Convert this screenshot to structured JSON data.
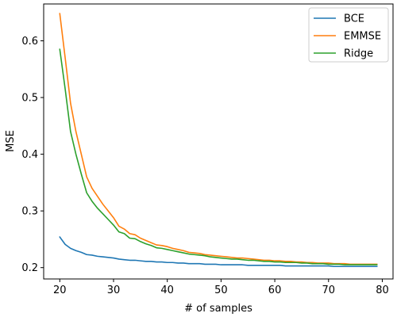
{
  "chart_data": {
    "type": "line",
    "title": "",
    "xlabel": "# of samples",
    "ylabel": "MSE",
    "xlim": [
      17,
      82
    ],
    "ylim": [
      0.18,
      0.665
    ],
    "xticks": [
      20,
      30,
      40,
      50,
      60,
      70,
      80
    ],
    "yticks": [
      0.2,
      0.3,
      0.4,
      0.5,
      0.6
    ],
    "grid": false,
    "legend_position": "top-right",
    "x": [
      20,
      21,
      22,
      23,
      24,
      25,
      26,
      27,
      28,
      29,
      30,
      31,
      32,
      33,
      34,
      35,
      36,
      37,
      38,
      39,
      40,
      41,
      42,
      43,
      44,
      45,
      46,
      47,
      48,
      49,
      50,
      51,
      52,
      53,
      54,
      55,
      56,
      57,
      58,
      59,
      60,
      61,
      62,
      63,
      64,
      65,
      66,
      67,
      68,
      69,
      70,
      71,
      72,
      73,
      74,
      75,
      76,
      77,
      78,
      79
    ],
    "series": [
      {
        "name": "BCE",
        "color": "#1f77b4",
        "values": [
          0.254,
          0.241,
          0.234,
          0.23,
          0.227,
          0.223,
          0.222,
          0.22,
          0.219,
          0.218,
          0.217,
          0.215,
          0.214,
          0.213,
          0.213,
          0.212,
          0.211,
          0.211,
          0.21,
          0.21,
          0.209,
          0.209,
          0.208,
          0.208,
          0.207,
          0.207,
          0.207,
          0.206,
          0.206,
          0.206,
          0.205,
          0.205,
          0.205,
          0.205,
          0.205,
          0.204,
          0.204,
          0.204,
          0.204,
          0.204,
          0.204,
          0.204,
          0.203,
          0.203,
          0.203,
          0.203,
          0.203,
          0.203,
          0.203,
          0.203,
          0.203,
          0.202,
          0.202,
          0.202,
          0.202,
          0.202,
          0.202,
          0.202,
          0.202,
          0.202
        ]
      },
      {
        "name": "EMMSE",
        "color": "#ff7f0e",
        "values": [
          0.648,
          0.57,
          0.49,
          0.44,
          0.4,
          0.36,
          0.34,
          0.326,
          0.312,
          0.3,
          0.288,
          0.273,
          0.268,
          0.26,
          0.258,
          0.252,
          0.248,
          0.244,
          0.24,
          0.239,
          0.237,
          0.234,
          0.232,
          0.23,
          0.227,
          0.226,
          0.225,
          0.223,
          0.222,
          0.221,
          0.22,
          0.219,
          0.218,
          0.217,
          0.217,
          0.216,
          0.215,
          0.214,
          0.213,
          0.213,
          0.212,
          0.212,
          0.211,
          0.211,
          0.21,
          0.21,
          0.209,
          0.209,
          0.208,
          0.208,
          0.208,
          0.207,
          0.207,
          0.207,
          0.206,
          0.206,
          0.206,
          0.206,
          0.206,
          0.206
        ]
      },
      {
        "name": "Ridge",
        "color": "#2ca02c",
        "values": [
          0.585,
          0.515,
          0.44,
          0.4,
          0.365,
          0.332,
          0.317,
          0.305,
          0.295,
          0.285,
          0.275,
          0.263,
          0.26,
          0.252,
          0.251,
          0.246,
          0.242,
          0.239,
          0.235,
          0.234,
          0.232,
          0.23,
          0.228,
          0.226,
          0.224,
          0.223,
          0.222,
          0.221,
          0.219,
          0.218,
          0.217,
          0.216,
          0.215,
          0.215,
          0.214,
          0.213,
          0.213,
          0.212,
          0.211,
          0.211,
          0.21,
          0.21,
          0.209,
          0.209,
          0.209,
          0.208,
          0.208,
          0.207,
          0.207,
          0.207,
          0.206,
          0.206,
          0.206,
          0.205,
          0.205,
          0.205,
          0.205,
          0.205,
          0.205,
          0.205
        ]
      }
    ]
  }
}
